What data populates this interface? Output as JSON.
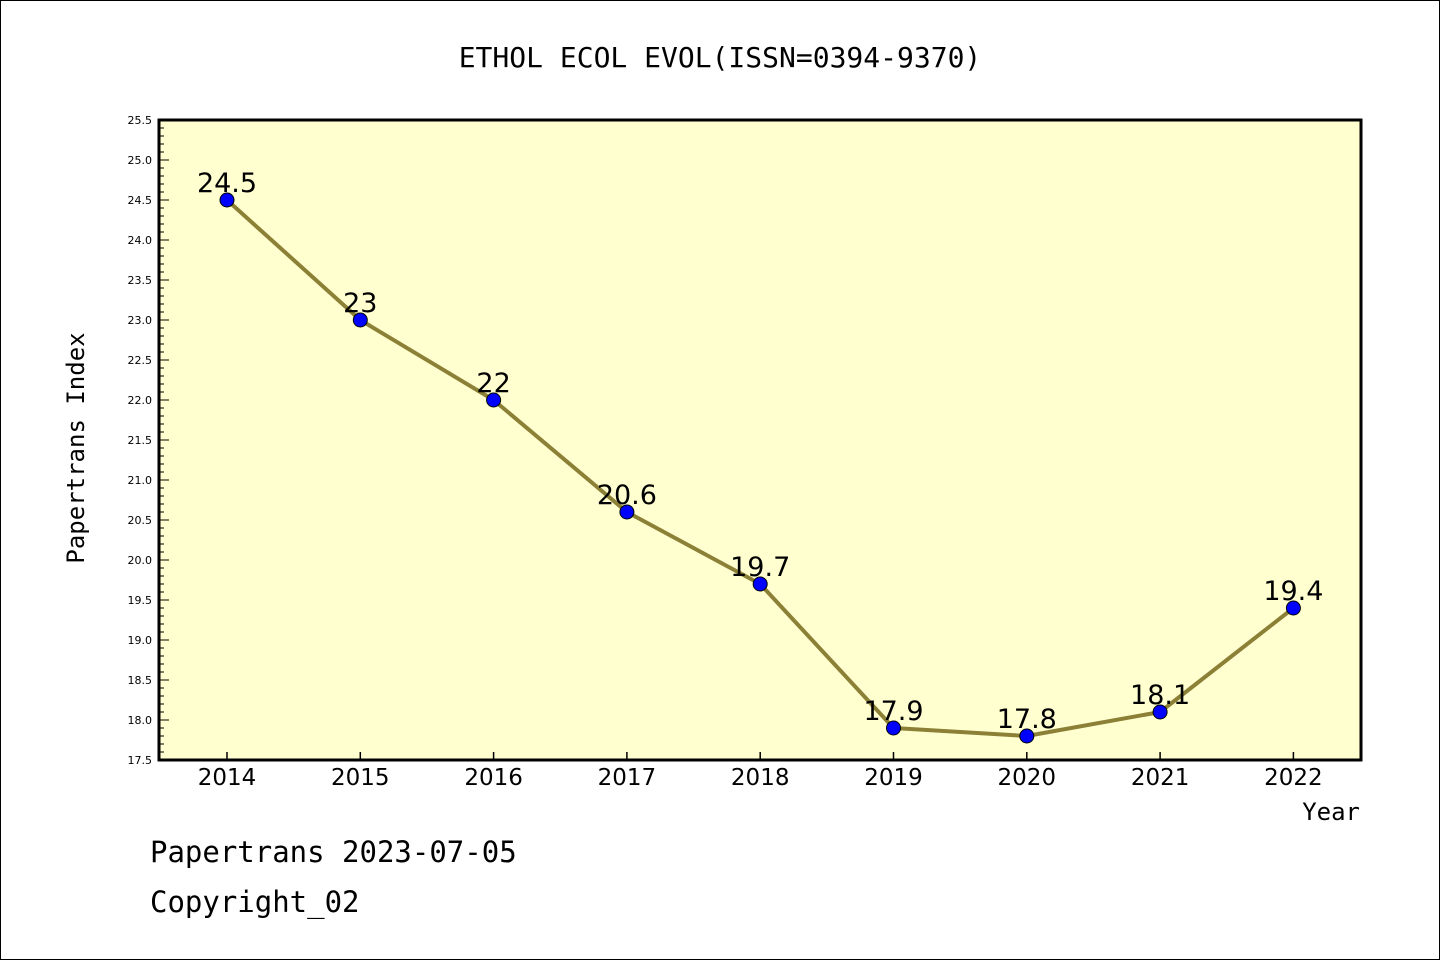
{
  "chart_data": {
    "type": "line",
    "title": "ETHOL ECOL EVOL(ISSN=0394-9370)",
    "xlabel": "Year",
    "ylabel": "Papertrans Index",
    "x": [
      "2014",
      "2015",
      "2016",
      "2017",
      "2018",
      "2019",
      "2020",
      "2021",
      "2022"
    ],
    "series": [
      {
        "values": [
          24.5,
          23,
          22,
          20.6,
          19.7,
          17.9,
          17.8,
          18.1,
          19.4
        ],
        "labels": [
          "24.5",
          "23",
          "22",
          "20.6",
          "19.7",
          "17.9",
          "17.8",
          "18.1",
          "19.4"
        ]
      }
    ],
    "ylim": [
      17.5,
      25.5
    ],
    "yticks": [
      "17.5",
      "18.0",
      "18.5",
      "19.0",
      "19.5",
      "20.0",
      "20.5",
      "21.0",
      "21.5",
      "22.0",
      "22.5",
      "23.0",
      "23.5",
      "24.0",
      "24.5",
      "25.0",
      "25.5"
    ],
    "grid": false,
    "colors": {
      "plot_bg": "#ffffd0",
      "line": "#8b8035",
      "marker": "#0000ff"
    }
  },
  "footer": {
    "line1": "Papertrans 2023-07-05",
    "line2": "Copyright_02"
  }
}
